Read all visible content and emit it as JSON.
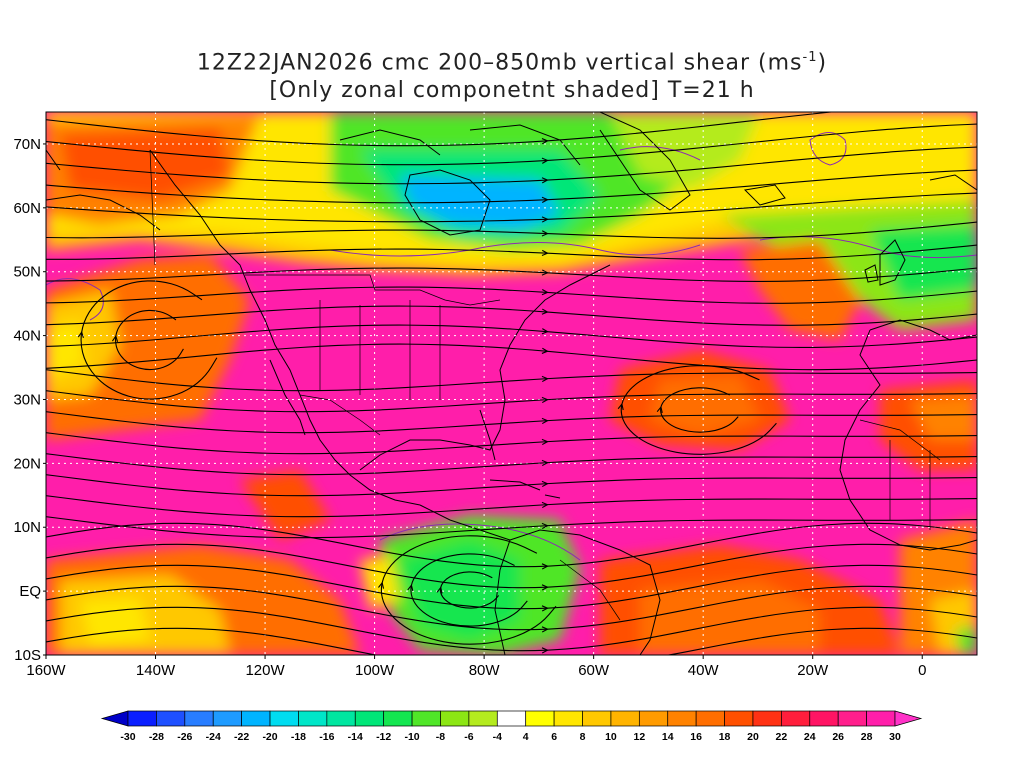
{
  "title": {
    "line1_prefix": "12Z22JAN2026 cmc 200–850mb vertical shear (ms",
    "line1_sup": "-1",
    "line1_suffix": ")",
    "line2": "[Only zonal componetnt shaded] T=21 h"
  },
  "map": {
    "lon_range": [
      -160,
      10
    ],
    "lat_range": [
      -10,
      75
    ],
    "lon_labels": [
      "160W",
      "140W",
      "120W",
      "100W",
      "80W",
      "60W",
      "40W",
      "20W",
      "0"
    ],
    "lon_values": [
      -160,
      -140,
      -120,
      -100,
      -80,
      -60,
      -40,
      -20,
      0
    ],
    "lat_labels": [
      "70N",
      "60N",
      "50N",
      "40N",
      "30N",
      "20N",
      "10N",
      "EQ",
      "10S"
    ],
    "lat_values": [
      70,
      60,
      50,
      40,
      30,
      20,
      10,
      0,
      -10
    ],
    "gridlines": "dotted",
    "overlays": [
      "streamlines",
      "coastlines",
      "country borders",
      "zonal shear shading",
      "purple contour"
    ]
  },
  "colorbar": {
    "labels": [
      "-30",
      "-28",
      "-26",
      "-24",
      "-22",
      "-20",
      "-18",
      "-16",
      "-14",
      "-12",
      "-10",
      "-8",
      "-6",
      "-4",
      "4",
      "6",
      "8",
      "10",
      "12",
      "14",
      "16",
      "18",
      "20",
      "22",
      "24",
      "26",
      "28",
      "30"
    ],
    "colors": [
      "#0a1eff",
      "#1e50ff",
      "#287dff",
      "#1e9bff",
      "#00b4ff",
      "#00dcf0",
      "#00e6c8",
      "#00e6a0",
      "#00e678",
      "#14e650",
      "#50e628",
      "#8ce614",
      "#b4eb1e",
      "#ffffff",
      "#ffff00",
      "#ffe600",
      "#ffc800",
      "#ffb400",
      "#ff9b00",
      "#ff8200",
      "#ff6e00",
      "#ff5000",
      "#ff3214",
      "#ff1e3c",
      "#ff1464",
      "#ff1e8c",
      "#ff1eaa"
    ],
    "low_arrow_color": "#0000c8",
    "high_arrow_color": "#ff32c8"
  }
}
